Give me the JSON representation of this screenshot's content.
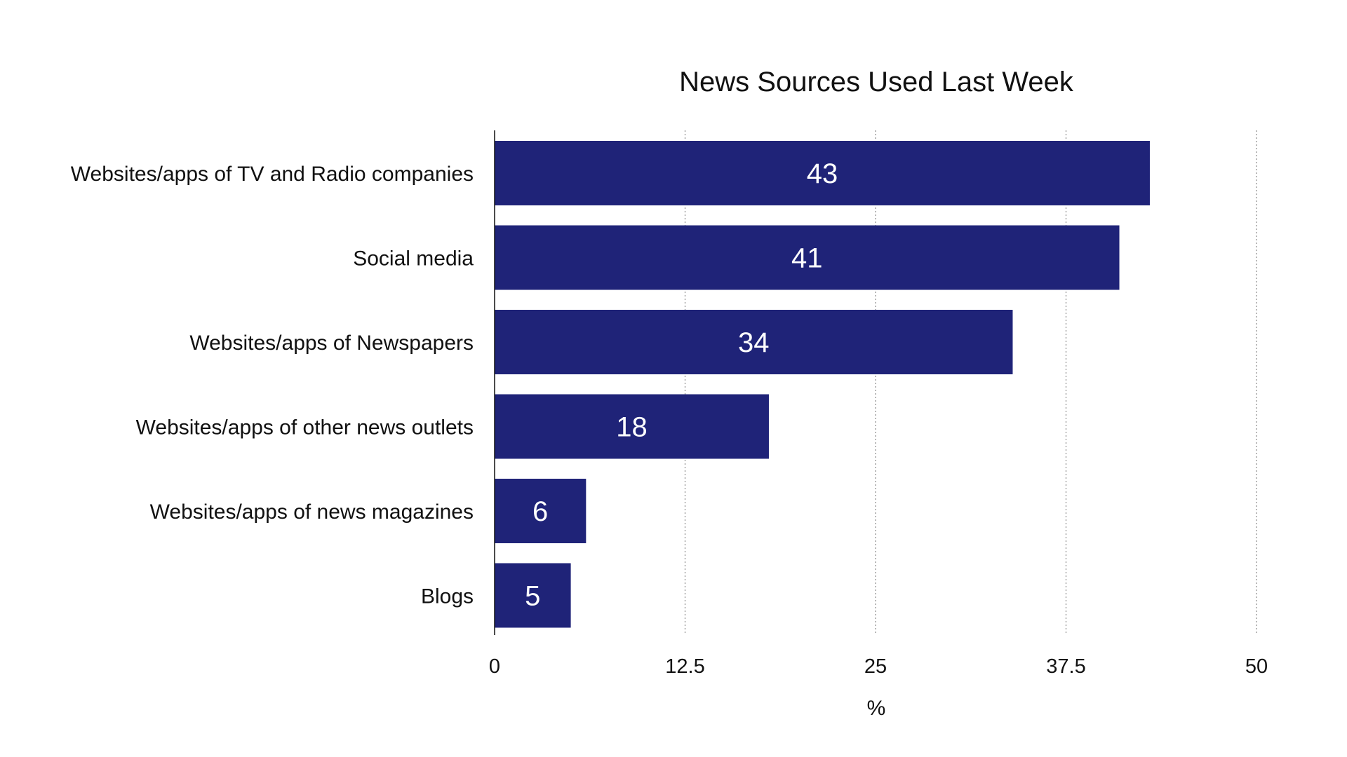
{
  "chart_data": {
    "type": "bar",
    "orientation": "horizontal",
    "title": "News Sources Used Last Week",
    "xlabel": "%",
    "ylabel": "",
    "categories": [
      "Websites/apps of TV and Radio companies",
      "Social media",
      "Websites/apps of Newspapers",
      "Websites/apps of other news outlets",
      "Websites/apps of news magazines",
      "Blogs"
    ],
    "values": [
      43,
      41,
      34,
      18,
      6,
      5
    ],
    "data_labels": [
      "43",
      "41",
      "34",
      "18",
      "6",
      "5"
    ],
    "xlim": [
      0,
      50
    ],
    "x_ticks": [
      0,
      12.5,
      25,
      37.5,
      50
    ],
    "x_tick_labels": [
      "0",
      "12.5",
      "25",
      "37.5",
      "50"
    ],
    "grid": "vertical dotted",
    "legend": "none",
    "bar_color": "#1f2378",
    "label_color": "#ffffff"
  }
}
